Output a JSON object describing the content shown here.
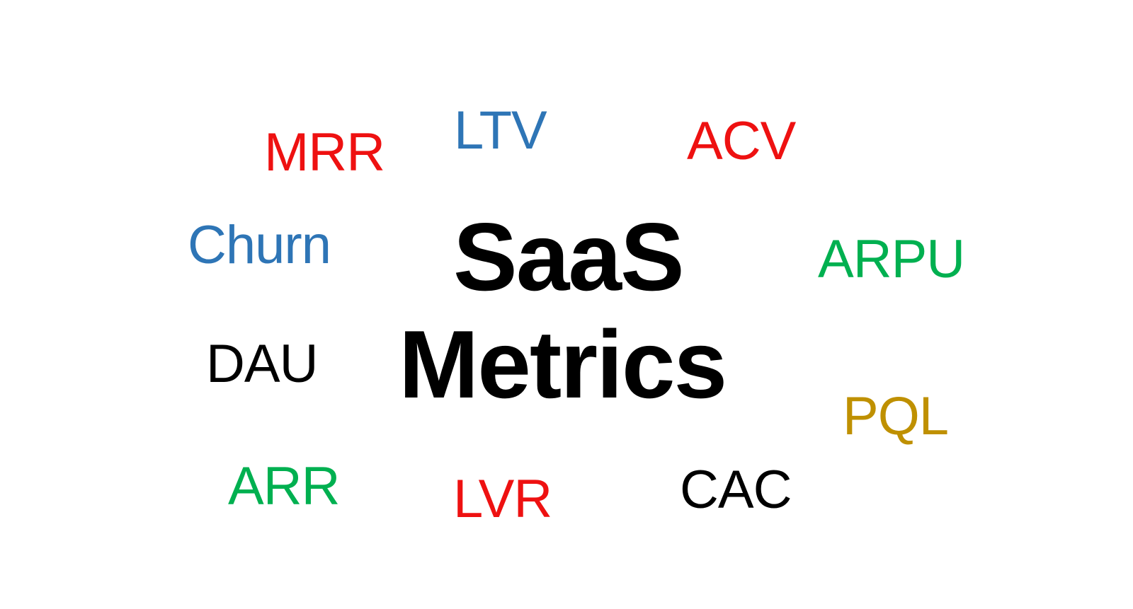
{
  "title": {
    "line1": "SaaS",
    "line2": "Metrics"
  },
  "metrics": [
    {
      "key": "mrr",
      "label": "MRR",
      "color": "#ee1111"
    },
    {
      "key": "ltv",
      "label": "LTV",
      "color": "#2e75b6"
    },
    {
      "key": "acv",
      "label": "ACV",
      "color": "#ee1111"
    },
    {
      "key": "churn",
      "label": "Churn",
      "color": "#2e75b6"
    },
    {
      "key": "arpu",
      "label": "ARPU",
      "color": "#00b050"
    },
    {
      "key": "dau",
      "label": "DAU",
      "color": "#000000"
    },
    {
      "key": "pql",
      "label": "PQL",
      "color": "#bf9000"
    },
    {
      "key": "arr",
      "label": "ARR",
      "color": "#00b050"
    },
    {
      "key": "lvr",
      "label": "LVR",
      "color": "#ee1111"
    },
    {
      "key": "cac",
      "label": "CAC",
      "color": "#000000"
    }
  ]
}
